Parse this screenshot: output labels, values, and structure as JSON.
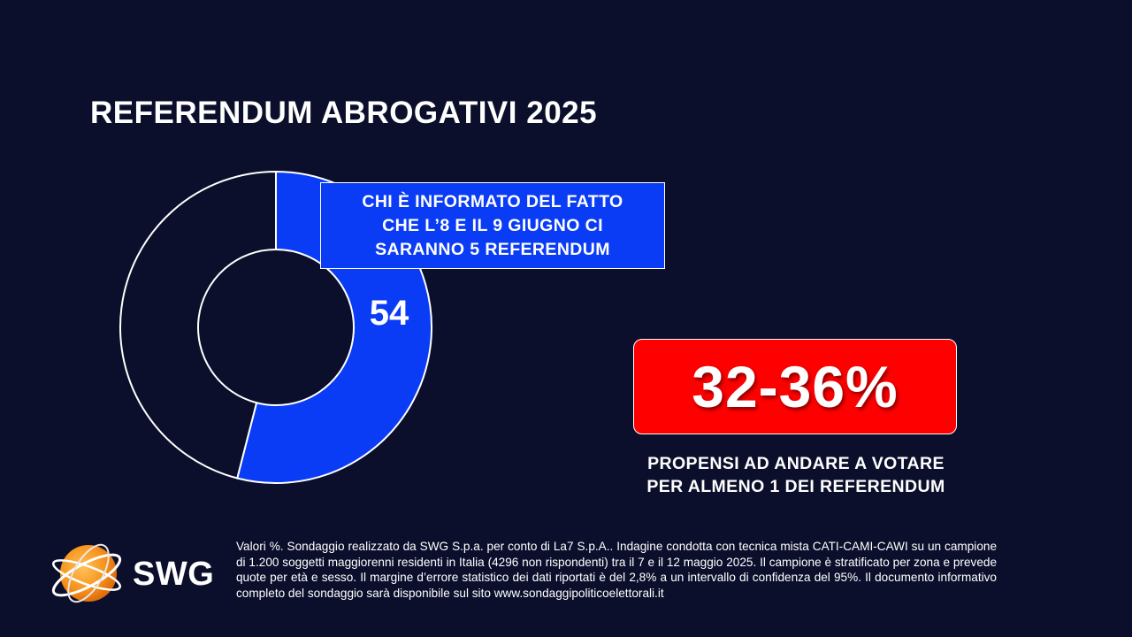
{
  "title": "REFERENDUM ABROGATIVI 2025",
  "chart_data": {
    "type": "pie",
    "categories": [
      "CHI È INFORMATO DEL FATTO CHE L’8 E IL 9 GIUGNO CI SARANNO 5 REFERENDUM",
      ""
    ],
    "values": [
      54,
      46
    ],
    "labels": [
      "54",
      ""
    ],
    "colors": [
      "#0a3cf5",
      "#0b0f2b"
    ],
    "title": "REFERENDUM ABROGATIVI 2025"
  },
  "callout": {
    "lines": [
      "CHI È INFORMATO DEL FATTO",
      "CHE L’8 E IL 9 GIUGNO CI",
      "SARANNO 5 REFERENDUM"
    ]
  },
  "highlight": {
    "range": "32-36%",
    "caption_lines": [
      "PROPENSI AD ANDARE A VOTARE",
      "PER ALMENO 1 DEI REFERENDUM"
    ],
    "color": "#ff0000"
  },
  "logo": {
    "text": "SWG",
    "icon": "globe-icon"
  },
  "footnote": "Valori %. Sondaggio realizzato da SWG S.p.a. per conto di La7 S.p.A.. Indagine condotta con tecnica mista CATI-CAMI-CAWI su un campione di 1.200 soggetti maggiorenni residenti in Italia (4296 non rispondenti) tra il 7 e il 12 maggio 2025. Il campione è stratificato per zona e prevede quote per età e sesso. Il margine d’errore statistico dei dati riportati è del 2,8% a un intervallo di confidenza del 95%. Il documento informativo completo del sondaggio sarà disponibile sul sito www.sondaggipoliticoelettorali.it",
  "colors": {
    "background": "#0b0f2b",
    "accent_blue": "#0a3cf5",
    "accent_red": "#ff0000",
    "logo_orange": "#f7941d"
  }
}
